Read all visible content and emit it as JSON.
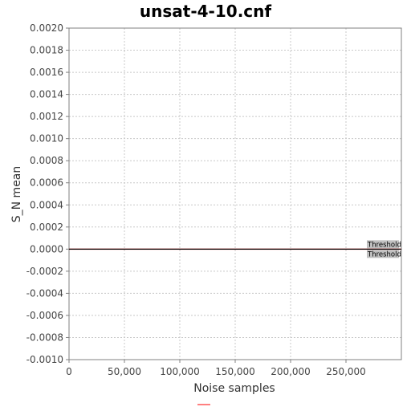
{
  "chart_data": {
    "type": "line",
    "title": "unsat-4-10.cnf",
    "xlabel": "Noise samples",
    "ylabel": "S_N mean",
    "xlim": [
      0,
      300000
    ],
    "ylim": [
      -0.001,
      0.002
    ],
    "x_ticks": [
      "0",
      "50,000",
      "100,000",
      "150,000",
      "200,000",
      "250,000"
    ],
    "x_tick_values": [
      0,
      50000,
      100000,
      150000,
      200000,
      250000
    ],
    "y_ticks": [
      "0.0020",
      "0.0018",
      "0.0016",
      "0.0014",
      "0.0012",
      "0.0010",
      "0.0008",
      "0.0006",
      "0.0004",
      "0.0002",
      "0.0000",
      "-0.0002",
      "-0.0004",
      "-0.0006",
      "-0.0008",
      "-0.0010"
    ],
    "y_tick_values": [
      0.002,
      0.0018,
      0.0016,
      0.0014,
      0.0012,
      0.001,
      0.0008,
      0.0006,
      0.0004,
      0.0002,
      0.0,
      -0.0002,
      -0.0004,
      -0.0006,
      -0.0008,
      -0.001
    ],
    "grid": true,
    "series": [
      {
        "color": "#ff6666",
        "x": [
          0,
          300000
        ],
        "y": [
          0.0,
          0.0
        ]
      }
    ],
    "threshold_lines": [
      {
        "value": 0.0,
        "label": "Threshold",
        "color": "#000000"
      },
      {
        "value": 0.0,
        "label": "Threshold",
        "color": "#000000"
      }
    ],
    "legend": {
      "placement": "bottom",
      "items": [
        {
          "color": "#ff8080"
        }
      ]
    }
  }
}
